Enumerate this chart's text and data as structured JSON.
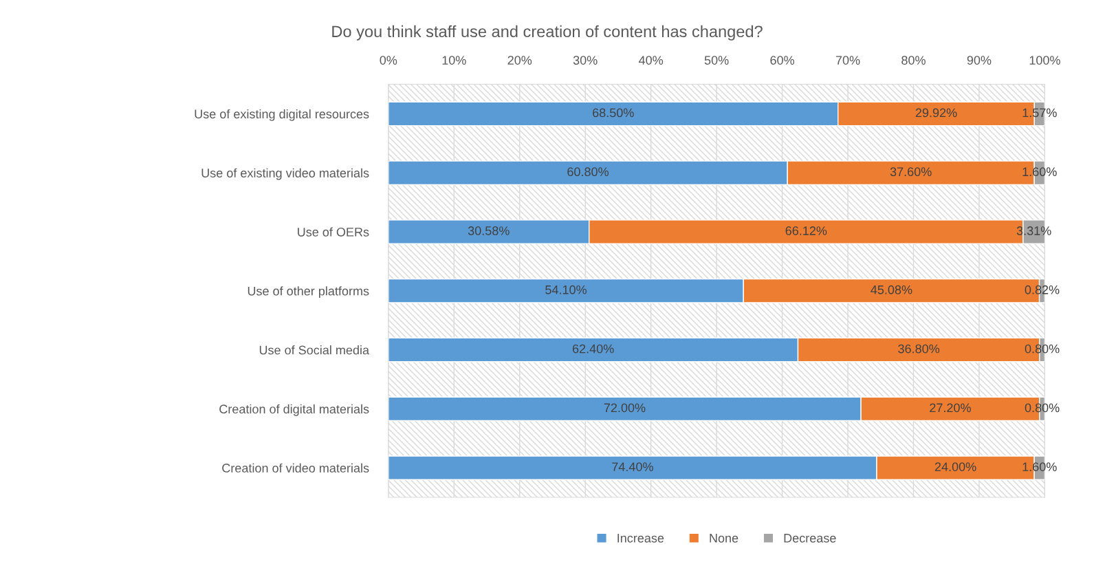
{
  "chart_data": {
    "type": "bar",
    "orientation": "horizontal",
    "stacked": true,
    "title": "Do you think staff use and creation of content has changed?",
    "categories": [
      "Use of existing digital resources",
      "Use of existing video materials",
      "Use of OERs",
      "Use of other platforms",
      "Use of Social media",
      "Creation of digital materials",
      "Creation of video materials"
    ],
    "series": [
      {
        "name": "Increase",
        "color": "#5b9bd5",
        "values": [
          68.5,
          60.8,
          30.58,
          54.1,
          62.4,
          72.0,
          74.4
        ],
        "value_labels": [
          "68.50%",
          "60.80%",
          "30.58%",
          "54.10%",
          "62.40%",
          "72.00%",
          "74.40%"
        ]
      },
      {
        "name": "None",
        "color": "#ed7d31",
        "values": [
          29.92,
          37.6,
          66.12,
          45.08,
          36.8,
          27.2,
          24.0
        ],
        "value_labels": [
          "29.92%",
          "37.60%",
          "66.12%",
          "45.08%",
          "36.80%",
          "27.20%",
          "24.00%"
        ]
      },
      {
        "name": "Decrease",
        "color": "#a5a5a5",
        "values": [
          1.57,
          1.6,
          3.31,
          0.82,
          0.8,
          0.8,
          1.6
        ],
        "value_labels": [
          "1.57%",
          "1.60%",
          "3.31%",
          "0.82%",
          "0.80%",
          "0.80%",
          "1.60%"
        ]
      }
    ],
    "xlim": [
      0,
      100
    ],
    "xticks": [
      {
        "value": 0,
        "label": "0%"
      },
      {
        "value": 10,
        "label": "10%"
      },
      {
        "value": 20,
        "label": "20%"
      },
      {
        "value": 30,
        "label": "30%"
      },
      {
        "value": 40,
        "label": "40%"
      },
      {
        "value": 50,
        "label": "50%"
      },
      {
        "value": 60,
        "label": "60%"
      },
      {
        "value": 70,
        "label": "70%"
      },
      {
        "value": 80,
        "label": "80%"
      },
      {
        "value": 90,
        "label": "90%"
      },
      {
        "value": 100,
        "label": "100%"
      }
    ],
    "grid": "x",
    "legend": "bottom"
  }
}
